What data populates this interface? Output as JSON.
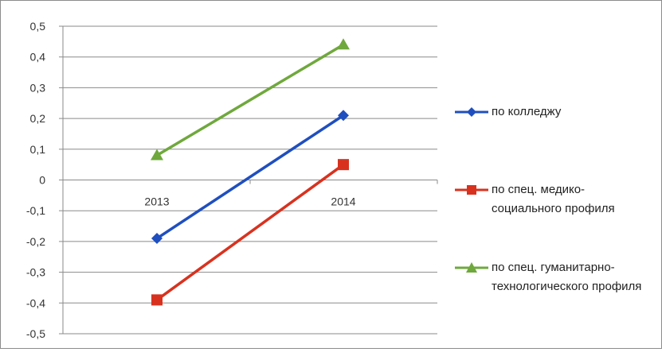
{
  "chart_data": {
    "type": "line",
    "categories": [
      "2013",
      "2014"
    ],
    "ylim": [
      -0.5,
      0.5
    ],
    "yticks": [
      "0,5",
      "0,4",
      "0,3",
      "0,2",
      "0,1",
      "0",
      "-0,1",
      "-0,2",
      "-0,3",
      "-0,4",
      "-0,5"
    ],
    "ytick_values": [
      0.5,
      0.4,
      0.3,
      0.2,
      0.1,
      0,
      -0.1,
      -0.2,
      -0.3,
      -0.4,
      -0.5
    ],
    "grid": true,
    "legend_position": "right",
    "series": [
      {
        "name": "по колледжу",
        "values": [
          -0.19,
          0.21
        ],
        "color": "#1f4fbf",
        "marker": "diamond"
      },
      {
        "name": "по спец. медико-социального профиля",
        "values": [
          -0.39,
          0.05
        ],
        "color": "#d8321f",
        "marker": "square"
      },
      {
        "name": "по спец. гуманитарно-технологического профиля",
        "values": [
          0.08,
          0.44
        ],
        "color": "#6fa83c",
        "marker": "triangle"
      }
    ]
  }
}
